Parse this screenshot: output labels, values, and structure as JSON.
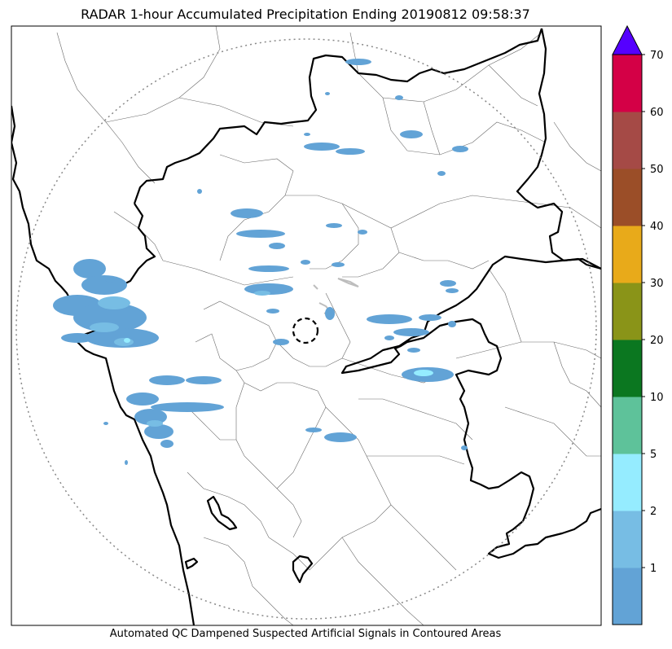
{
  "title": "RADAR 1-hour Accumulated Precipitation Ending 20190812 09:58:37",
  "footer": "Automated QC Dampened Suspected Artificial Signals in Contoured Areas",
  "colorbar": {
    "levels": [
      {
        "label": "",
        "color": "#62a3d6"
      },
      {
        "label": "1",
        "color": "#77bde4"
      },
      {
        "label": "2",
        "color": "#95ecff"
      },
      {
        "label": "5",
        "color": "#5ec29a"
      },
      {
        "label": "10",
        "color": "#0b7720"
      },
      {
        "label": "20",
        "color": "#8a9418"
      },
      {
        "label": "30",
        "color": "#e8aa1a"
      },
      {
        "label": "40",
        "color": "#9b4e28"
      },
      {
        "label": "50",
        "color": "#a54a46"
      },
      {
        "label": "60",
        "color": "#d40046"
      }
    ],
    "top_label": "70",
    "extend_color": "#5500ff"
  },
  "colors": {
    "rain_light": "#62a3d6",
    "rain_mid": "#77bde4",
    "rain_core": "#95ecff",
    "boundary": "#000000",
    "district": "#6a6a6a",
    "range_ring": "#888888",
    "artificial": "#bdbdbd"
  }
}
